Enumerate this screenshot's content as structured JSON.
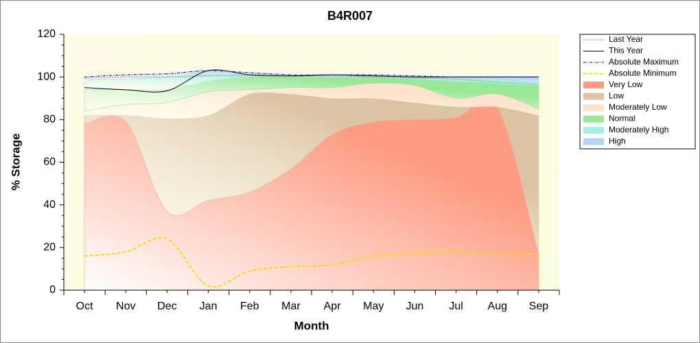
{
  "chart_data": {
    "type": "area",
    "title": "B4R007",
    "xlabel": "Month",
    "ylabel": "% Storage",
    "categories": [
      "Oct",
      "Nov",
      "Dec",
      "Jan",
      "Feb",
      "Mar",
      "Apr",
      "May",
      "Jun",
      "Jul",
      "Aug",
      "Sep"
    ],
    "xlim": [
      -0.5,
      11.5
    ],
    "ylim": [
      0,
      120
    ],
    "yticks": [
      0,
      20,
      40,
      60,
      80,
      100,
      120
    ],
    "legend": "right",
    "series": [
      {
        "name": "Last Year",
        "kind": "line",
        "style": "dotted",
        "color": "#c07840",
        "values": [
          99.5,
          100,
          100,
          100.5,
          100.5,
          100.5,
          100.5,
          100,
          99.5,
          99,
          97.5,
          96.5
        ]
      },
      {
        "name": "This Year",
        "kind": "line",
        "style": "solid",
        "color": "#000000",
        "values": [
          95,
          94,
          93.5,
          103,
          101,
          100.5,
          101,
          100.5,
          100,
          100,
          100,
          100
        ]
      },
      {
        "name": "Absolute Maximum",
        "kind": "line",
        "style": "dashdot",
        "color": "#0000c0",
        "values": [
          100,
          101,
          101.5,
          103,
          102,
          101,
          101,
          101,
          100.5,
          100,
          100,
          100
        ]
      },
      {
        "name": "Absolute Minimum",
        "kind": "line",
        "style": "dashed",
        "color": "#f0e000",
        "values": [
          16,
          18,
          24,
          2,
          9,
          11,
          12,
          16,
          17,
          18,
          17,
          17
        ]
      },
      {
        "name": "Very Low",
        "kind": "band",
        "color": "#fd9c82",
        "values": [
          78,
          79,
          37,
          42,
          46,
          57,
          73,
          79,
          80,
          81,
          86,
          17
        ]
      },
      {
        "name": "Low",
        "kind": "band",
        "color": "#dcc3a3",
        "values": [
          4,
          3,
          43.5,
          40,
          46,
          35,
          17,
          11,
          8,
          5,
          0,
          65
        ]
      },
      {
        "name": "Moderately Low",
        "kind": "band",
        "color": "#fde3cb",
        "values": [
          2,
          5,
          7.5,
          11,
          2,
          3,
          5,
          7,
          8,
          4,
          6,
          3
        ]
      },
      {
        "name": "Normal",
        "kind": "band",
        "color": "#98e898",
        "values": [
          10,
          7,
          6,
          5,
          6,
          5.5,
          5,
          3,
          3,
          8,
          5,
          11
        ]
      },
      {
        "name": "Moderately High",
        "kind": "band",
        "color": "#a0f2e2",
        "values": [
          5,
          5,
          6,
          3,
          1,
          0,
          0.5,
          0.5,
          1,
          1.5,
          2,
          1
        ]
      },
      {
        "name": "High",
        "kind": "band",
        "color": "#b2d6f2",
        "values": [
          1,
          2,
          1.5,
          2,
          1,
          0.5,
          0.5,
          0.5,
          0.5,
          0.5,
          1,
          3
        ]
      }
    ]
  }
}
